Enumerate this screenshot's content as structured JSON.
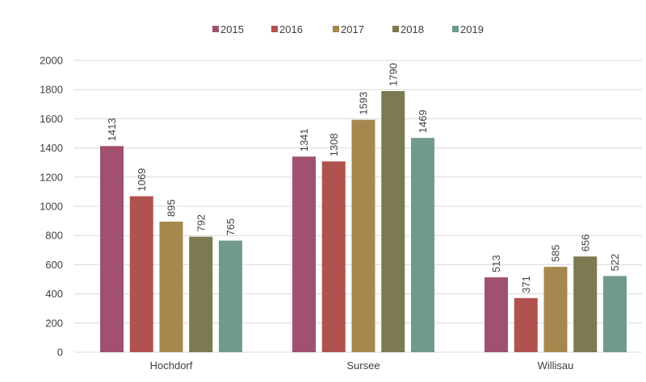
{
  "chart_data": {
    "type": "bar",
    "categories": [
      "Hochdorf",
      "Sursee",
      "Willisau"
    ],
    "series": [
      {
        "name": "2015",
        "color": "#a1506f",
        "values": [
          1413,
          1341,
          513
        ]
      },
      {
        "name": "2016",
        "color": "#b0524e",
        "values": [
          1069,
          1308,
          371
        ]
      },
      {
        "name": "2017",
        "color": "#a5884e",
        "values": [
          895,
          1593,
          585
        ]
      },
      {
        "name": "2018",
        "color": "#7b7a50",
        "values": [
          792,
          1790,
          656
        ]
      },
      {
        "name": "2019",
        "color": "#719a8e",
        "values": [
          765,
          1469,
          522
        ]
      }
    ],
    "ylim": [
      0,
      2000
    ],
    "yticks": [
      0,
      200,
      400,
      600,
      800,
      1000,
      1200,
      1400,
      1600,
      1800,
      2000
    ],
    "grid": true,
    "legend_position": "top-center",
    "data_labels": true,
    "title": "",
    "xlabel": "",
    "ylabel": ""
  }
}
